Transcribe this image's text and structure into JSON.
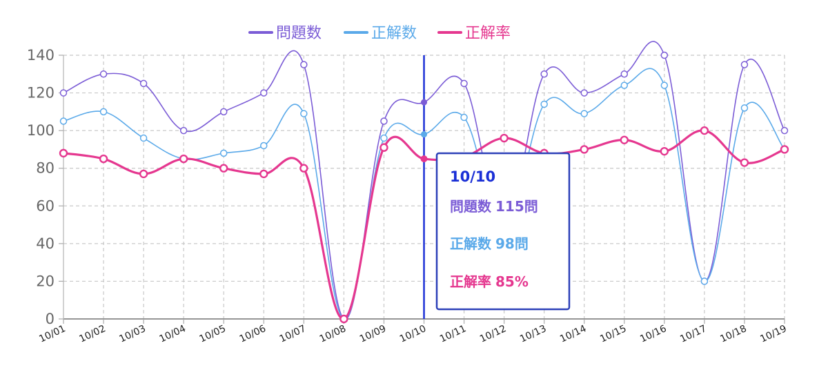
{
  "chart_data": {
    "type": "line",
    "categories": [
      "10/01",
      "10/02",
      "10/03",
      "10/04",
      "10/05",
      "10/06",
      "10/07",
      "10/08",
      "10/09",
      "10/10",
      "10/11",
      "10/12",
      "10/13",
      "10/14",
      "10/15",
      "10/16",
      "10/17",
      "10/18",
      "10/19"
    ],
    "series": [
      {
        "name": "問題数",
        "color": "#7b5cd6",
        "values": [
          120,
          130,
          125,
          100,
          110,
          120,
          135,
          0,
          105,
          115,
          125,
          50,
          130,
          120,
          130,
          140,
          20,
          135,
          100
        ]
      },
      {
        "name": "正解数",
        "color": "#5aa9e9",
        "values": [
          105,
          110,
          96,
          85,
          88,
          92,
          109,
          0,
          96,
          98,
          107,
          48,
          114,
          109,
          124,
          124,
          20,
          112,
          90
        ]
      },
      {
        "name": "正解率",
        "color": "#e5378f",
        "values": [
          88,
          85,
          77,
          85,
          80,
          77,
          80,
          0,
          91,
          85,
          86,
          96,
          88,
          90,
          95,
          89,
          100,
          83,
          90
        ]
      }
    ],
    "ylim": [
      0,
      140
    ],
    "yticks": [
      0,
      20,
      40,
      60,
      80,
      100,
      120,
      140
    ],
    "grid": true,
    "legend_position": "top-center",
    "crosshair_color": "#1a2fd6",
    "tooltip": {
      "title": "10/10",
      "title_color": "#1a2fd6",
      "lines": [
        {
          "label": "問題数",
          "value": "115問",
          "color": "#7b5cd6"
        },
        {
          "label": "正解数",
          "value": "98問",
          "color": "#5aa9e9"
        },
        {
          "label": "正解率",
          "value": "85%",
          "color": "#e5378f"
        }
      ]
    }
  }
}
